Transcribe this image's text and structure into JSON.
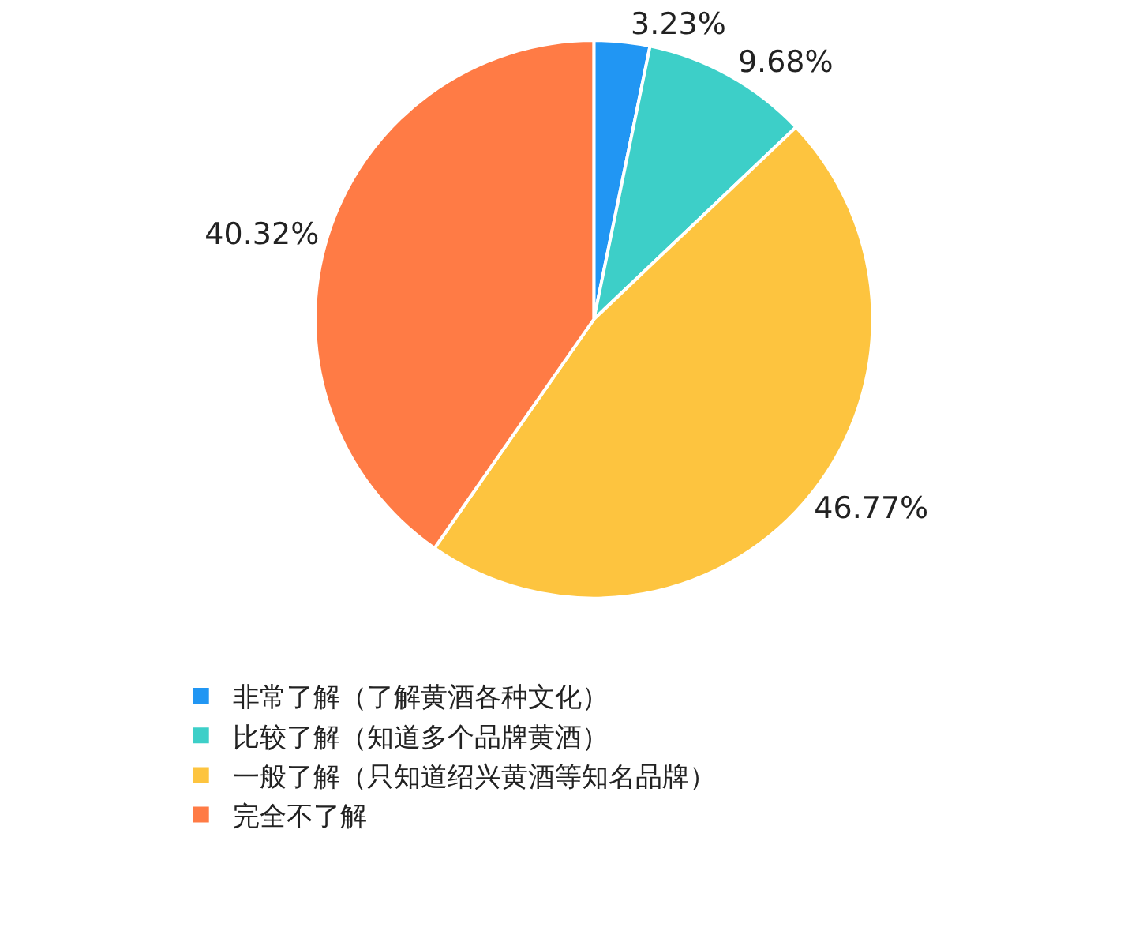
{
  "chart_data": {
    "type": "pie",
    "categories": [
      "非常了解（了解黄酒各种文化）",
      "比较了解（知道多个品牌黄酒）",
      "一般了解（只知道绍兴黄酒等知名品牌）",
      "完全不了解"
    ],
    "values": [
      3.23,
      9.68,
      46.77,
      40.32
    ],
    "value_labels": [
      "3.23%",
      "9.68%",
      "46.77%",
      "40.32%"
    ],
    "colors": [
      "#2196f3",
      "#3dcfc8",
      "#fdc43f",
      "#ff7b45"
    ],
    "legend": "bottom left"
  }
}
